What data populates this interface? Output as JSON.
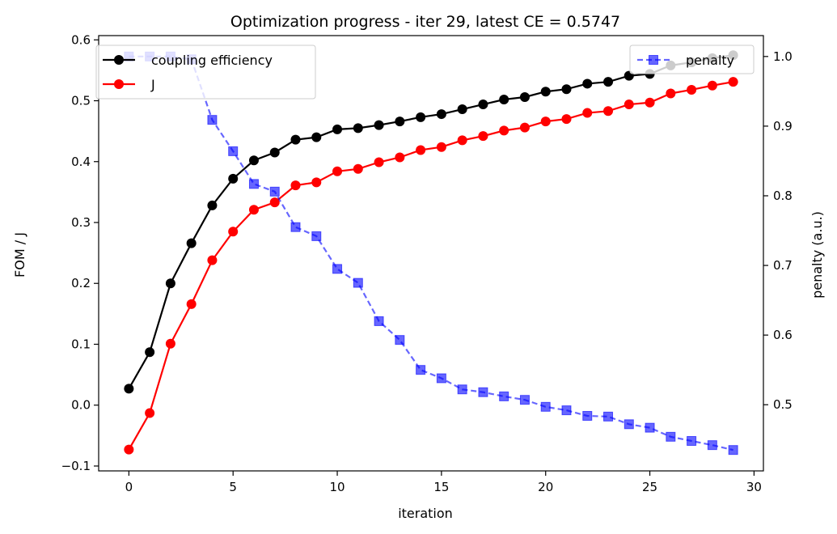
{
  "chart_data": {
    "type": "line",
    "title": "Optimization progress - iter 29, latest CE = 0.5747",
    "xlabel": "iteration",
    "ylabel": "FOM / J",
    "y2label": "penalty (a.u.)",
    "xlim": [
      -1.45,
      30.45
    ],
    "ylim": [
      -0.108,
      0.607
    ],
    "y2lim": [
      0.405,
      1.03
    ],
    "x_ticks": [
      0,
      5,
      10,
      15,
      20,
      25,
      30
    ],
    "y_ticks": [
      -0.1,
      0.0,
      0.1,
      0.2,
      0.3,
      0.4,
      0.5,
      0.6
    ],
    "y_tick_labels": [
      "−0.1",
      "0.0",
      "0.1",
      "0.2",
      "0.3",
      "0.4",
      "0.5",
      "0.6"
    ],
    "y2_ticks": [
      0.5,
      0.6,
      0.7,
      0.8,
      0.9,
      1.0
    ],
    "y2_tick_labels": [
      "0.5",
      "0.6",
      "0.7",
      "0.8",
      "0.9",
      "1.0"
    ],
    "x": [
      0,
      1,
      2,
      3,
      4,
      5,
      6,
      7,
      8,
      9,
      10,
      11,
      12,
      13,
      14,
      15,
      16,
      17,
      18,
      19,
      20,
      21,
      22,
      23,
      24,
      25,
      26,
      27,
      28,
      29
    ],
    "series": [
      {
        "name": "coupling efficiency",
        "axis": "left",
        "color": "#000000",
        "marker": "circle",
        "linestyle": "solid",
        "values": [
          0.027,
          0.087,
          0.2,
          0.266,
          0.328,
          0.372,
          0.402,
          0.415,
          0.436,
          0.44,
          0.453,
          0.455,
          0.46,
          0.466,
          0.473,
          0.478,
          0.486,
          0.494,
          0.502,
          0.506,
          0.515,
          0.519,
          0.528,
          0.531,
          0.541,
          0.544,
          0.558,
          0.563,
          0.57,
          0.5747
        ]
      },
      {
        "name": "J",
        "axis": "left",
        "color": "#ff0000",
        "marker": "circle",
        "linestyle": "solid",
        "values": [
          -0.073,
          -0.013,
          0.101,
          0.166,
          0.238,
          0.285,
          0.321,
          0.333,
          0.361,
          0.366,
          0.384,
          0.388,
          0.399,
          0.407,
          0.419,
          0.424,
          0.435,
          0.442,
          0.451,
          0.456,
          0.466,
          0.47,
          0.48,
          0.483,
          0.494,
          0.497,
          0.512,
          0.518,
          0.525,
          0.531
        ]
      },
      {
        "name": "penalty",
        "axis": "right",
        "color": "#0000ff",
        "marker": "square",
        "linestyle": "dashed",
        "values": [
          1.0,
          1.0,
          1.0,
          0.996,
          0.909,
          0.864,
          0.817,
          0.806,
          0.755,
          0.742,
          0.695,
          0.675,
          0.62,
          0.593,
          0.55,
          0.538,
          0.522,
          0.518,
          0.512,
          0.507,
          0.497,
          0.492,
          0.484,
          0.483,
          0.472,
          0.467,
          0.454,
          0.448,
          0.442,
          0.435
        ]
      }
    ],
    "legend_left": {
      "placement": "upper-left",
      "entries": [
        "coupling efficiency",
        "J"
      ]
    },
    "legend_right": {
      "placement": "upper-right",
      "entries": [
        "penalty"
      ]
    },
    "grid": false
  }
}
